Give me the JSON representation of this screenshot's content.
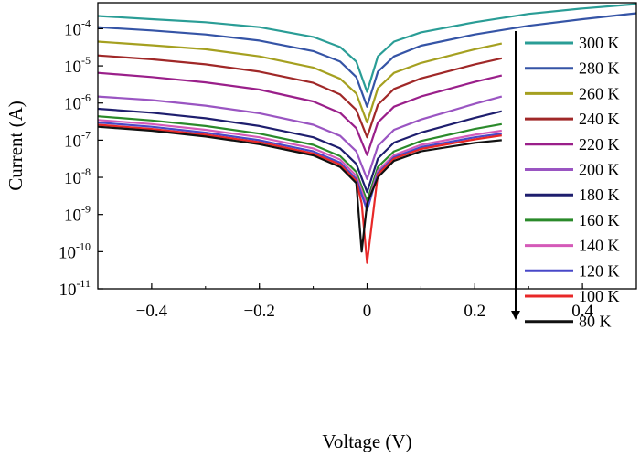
{
  "chart_data": {
    "type": "line",
    "xlabel": "Voltage (V)",
    "ylabel": "Current (A)",
    "y_scale": "log",
    "xlim": [
      -0.5,
      0.5
    ],
    "ylim": [
      1e-11,
      0.0005
    ],
    "x_ticks": [
      {
        "value": -0.4,
        "label": "−0.4"
      },
      {
        "value": -0.2,
        "label": "−0.2"
      },
      {
        "value": 0,
        "label": "0"
      },
      {
        "value": 0.2,
        "label": "0.2"
      },
      {
        "value": 0.4,
        "label": "0.4"
      }
    ],
    "y_ticks": [
      {
        "value": 0.0001,
        "base": "10",
        "exp": "-4"
      },
      {
        "value": 1e-05,
        "base": "10",
        "exp": "-5"
      },
      {
        "value": 1e-06,
        "base": "10",
        "exp": "-6"
      },
      {
        "value": 1e-07,
        "base": "10",
        "exp": "-7"
      },
      {
        "value": 1e-08,
        "base": "10",
        "exp": "-8"
      },
      {
        "value": 1e-09,
        "base": "10",
        "exp": "-9"
      },
      {
        "value": 1e-10,
        "base": "10",
        "exp": "-10"
      },
      {
        "value": 1e-11,
        "base": "10",
        "exp": "-11"
      }
    ],
    "grid": false,
    "legend": {
      "position": "top-right",
      "arrow": "down"
    },
    "series": [
      {
        "name": "300 K",
        "color": "#2a9d96",
        "x": [
          -0.5,
          -0.4,
          -0.3,
          -0.2,
          -0.1,
          -0.05,
          -0.02,
          0.0,
          0.02,
          0.05,
          0.1,
          0.2,
          0.3,
          0.4,
          0.5
        ],
        "y": [
          0.00022,
          0.00018,
          0.00015,
          0.00011,
          6e-05,
          3.2e-05,
          1.3e-05,
          2e-06,
          1.8e-05,
          4.5e-05,
          8e-05,
          0.00015,
          0.00025,
          0.00035,
          0.00046
        ]
      },
      {
        "name": "280 K",
        "color": "#3554a6",
        "x": [
          -0.5,
          -0.4,
          -0.3,
          -0.2,
          -0.1,
          -0.05,
          -0.02,
          0.0,
          0.02,
          0.05,
          0.1,
          0.2,
          0.3,
          0.4,
          0.5
        ],
        "y": [
          0.00011,
          9e-05,
          7e-05,
          4.8e-05,
          2.5e-05,
          1.3e-05,
          5e-06,
          8e-07,
          7e-06,
          1.8e-05,
          3.5e-05,
          7e-05,
          0.00012,
          0.00018,
          0.00026
        ]
      },
      {
        "name": "260 K",
        "color": "#a5a020",
        "x": [
          -0.5,
          -0.4,
          -0.3,
          -0.2,
          -0.1,
          -0.05,
          -0.02,
          0.0,
          0.02,
          0.05,
          0.1,
          0.2,
          0.25
        ],
        "y": [
          4.5e-05,
          3.6e-05,
          2.8e-05,
          1.8e-05,
          9e-06,
          4.5e-06,
          1.8e-06,
          3e-07,
          2.5e-06,
          6.5e-06,
          1.2e-05,
          2.8e-05,
          4e-05
        ]
      },
      {
        "name": "240 K",
        "color": "#a02828",
        "x": [
          -0.5,
          -0.4,
          -0.3,
          -0.2,
          -0.1,
          -0.05,
          -0.02,
          0.0,
          0.02,
          0.05,
          0.1,
          0.2,
          0.25
        ],
        "y": [
          1.9e-05,
          1.5e-05,
          1.1e-05,
          7e-06,
          3.5e-06,
          1.7e-06,
          6.5e-07,
          1.2e-07,
          9e-07,
          2.4e-06,
          4.6e-06,
          1.1e-05,
          1.6e-05
        ]
      },
      {
        "name": "220 K",
        "color": "#9a1f8a",
        "x": [
          -0.5,
          -0.4,
          -0.3,
          -0.2,
          -0.1,
          -0.05,
          -0.02,
          0.0,
          0.02,
          0.05,
          0.1,
          0.2,
          0.25
        ],
        "y": [
          6.5e-06,
          5e-06,
          3.6e-06,
          2.3e-06,
          1.1e-06,
          5.4e-07,
          2.1e-07,
          4e-08,
          3e-07,
          8e-07,
          1.5e-06,
          3.7e-06,
          5.5e-06
        ]
      },
      {
        "name": "200 K",
        "color": "#9a55c2",
        "x": [
          -0.5,
          -0.4,
          -0.3,
          -0.2,
          -0.1,
          -0.05,
          -0.02,
          0.0,
          0.02,
          0.05,
          0.1,
          0.2,
          0.25
        ],
        "y": [
          1.5e-06,
          1.2e-06,
          8.5e-07,
          5.3e-07,
          2.6e-07,
          1.3e-07,
          5e-08,
          9e-09,
          7e-08,
          1.9e-07,
          3.6e-07,
          9.5e-07,
          1.5e-06
        ]
      },
      {
        "name": "180 K",
        "color": "#1e1e6e",
        "x": [
          -0.5,
          -0.4,
          -0.3,
          -0.2,
          -0.1,
          -0.05,
          -0.02,
          0.0,
          0.02,
          0.05,
          0.1,
          0.2,
          0.25
        ],
        "y": [
          7e-07,
          5.5e-07,
          3.9e-07,
          2.4e-07,
          1.2e-07,
          6e-08,
          2.3e-08,
          4e-09,
          3.2e-08,
          8.6e-08,
          1.6e-07,
          4e-07,
          6e-07
        ]
      },
      {
        "name": "160 K",
        "color": "#2a8a2a",
        "x": [
          -0.5,
          -0.4,
          -0.3,
          -0.2,
          -0.1,
          -0.05,
          -0.02,
          0.0,
          0.02,
          0.05,
          0.1,
          0.2,
          0.25
        ],
        "y": [
          4.4e-07,
          3.4e-07,
          2.4e-07,
          1.5e-07,
          7.5e-08,
          3.7e-08,
          1.4e-08,
          2.3e-09,
          1.9e-08,
          5e-08,
          9.5e-08,
          2e-07,
          2.7e-07
        ]
      },
      {
        "name": "140 K",
        "color": "#d45ab8",
        "x": [
          -0.5,
          -0.4,
          -0.3,
          -0.2,
          -0.1,
          -0.05,
          -0.02,
          0.0,
          0.02,
          0.05,
          0.1,
          0.2,
          0.25
        ],
        "y": [
          3.5e-07,
          2.7e-07,
          1.9e-07,
          1.2e-07,
          6e-08,
          3e-08,
          1.1e-08,
          1.7e-09,
          1.5e-08,
          4e-08,
          7.5e-08,
          1.4e-07,
          1.8e-07
        ]
      },
      {
        "name": "120 K",
        "color": "#4848c8",
        "x": [
          -0.5,
          -0.4,
          -0.3,
          -0.2,
          -0.1,
          -0.05,
          -0.02,
          0.0,
          0.02,
          0.05,
          0.1,
          0.2,
          0.25
        ],
        "y": [
          3e-07,
          2.3e-07,
          1.6e-07,
          1e-07,
          5e-08,
          2.5e-08,
          9e-09,
          1.3e-09,
          1.3e-08,
          3.5e-08,
          6.5e-08,
          1.2e-07,
          1.5e-07
        ]
      },
      {
        "name": "100 K",
        "color": "#e82828",
        "x": [
          -0.5,
          -0.4,
          -0.3,
          -0.2,
          -0.1,
          -0.05,
          -0.02,
          -0.01,
          0.0,
          0.02,
          0.05,
          0.1,
          0.2,
          0.25
        ],
        "y": [
          2.6e-07,
          2e-07,
          1.4e-07,
          8.8e-08,
          4.4e-08,
          2.2e-08,
          8e-09,
          2e-09,
          5e-11,
          1.2e-08,
          3.2e-08,
          5.8e-08,
          1.05e-07,
          1.35e-07
        ]
      },
      {
        "name": "80 K",
        "color": "#111111",
        "x": [
          -0.5,
          -0.4,
          -0.3,
          -0.2,
          -0.1,
          -0.05,
          -0.02,
          -0.01,
          0.0,
          0.02,
          0.05,
          0.1,
          0.2,
          0.25
        ],
        "y": [
          2.3e-07,
          1.8e-07,
          1.25e-07,
          7.8e-08,
          3.9e-08,
          1.9e-08,
          7e-09,
          1e-10,
          2e-09,
          1e-08,
          2.8e-08,
          5e-08,
          8.5e-08,
          1e-07
        ]
      }
    ]
  }
}
